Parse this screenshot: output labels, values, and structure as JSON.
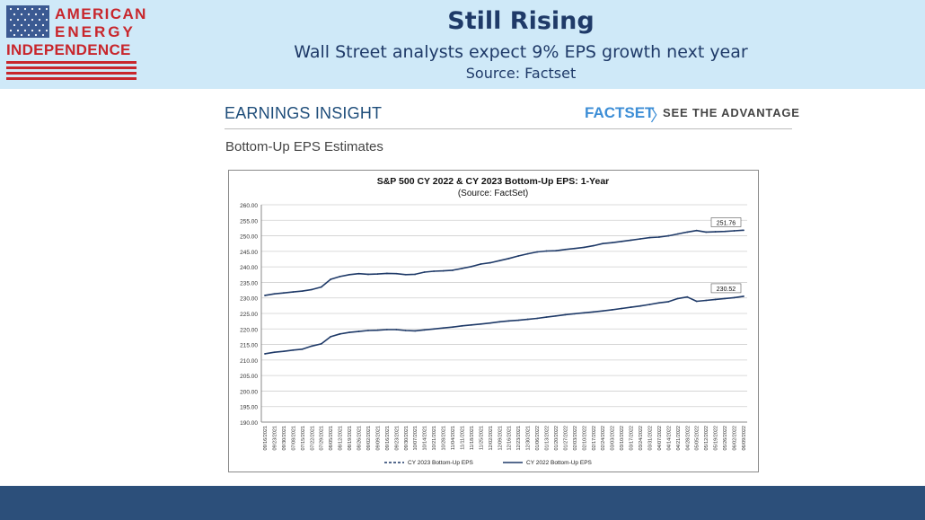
{
  "header": {
    "logo": {
      "line1": "AMERICAN",
      "line2": "ENERGY",
      "line3": "INDEPENDENCE"
    },
    "title": "Still Rising",
    "subtitle": "Wall Street analysts expect 9% EPS growth next year",
    "source": "Source: Factset"
  },
  "insight": {
    "title": "EARNINGS INSIGHT",
    "brand": "FACTSET",
    "chevron": "〉",
    "tagline": "SEE THE ADVANTAGE",
    "section_title": "Bottom-Up EPS Estimates"
  },
  "colors": {
    "header_bg": "#cfe9f8",
    "title": "#1f3a68",
    "bottom_bar": "#2c4f7a",
    "series": "#1f3a68",
    "logo_red": "#c8262c"
  },
  "chart_data": {
    "type": "line",
    "title": "S&P 500 CY 2022 & CY 2023 Bottom-Up EPS: 1-Year",
    "subtitle": "(Source: FactSet)",
    "ylim": [
      190,
      260
    ],
    "y_ticks": [
      "260.00",
      "255.00",
      "250.00",
      "245.00",
      "240.00",
      "235.00",
      "230.00",
      "225.00",
      "220.00",
      "215.00",
      "210.00",
      "205.00",
      "200.00",
      "195.00",
      "190.00"
    ],
    "x_ticks": [
      "09/16/2021",
      "09/23/2021",
      "09/30/2021",
      "07/08/2021",
      "07/15/2021",
      "07/22/2021",
      "07/29/2021",
      "08/05/2021",
      "08/12/2021",
      "08/19/2021",
      "08/26/2021",
      "09/02/2021",
      "09/09/2021",
      "09/16/2021",
      "09/23/2021",
      "09/30/2021",
      "10/07/2021",
      "10/14/2021",
      "10/21/2021",
      "10/28/2021",
      "11/04/2021",
      "11/11/2021",
      "11/18/2021",
      "11/25/2021",
      "12/02/2021",
      "12/09/2021",
      "12/16/2021",
      "12/23/2021",
      "12/30/2021",
      "01/06/2022",
      "01/13/2022",
      "01/20/2022",
      "01/27/2022",
      "02/03/2022",
      "02/10/2022",
      "02/17/2022",
      "02/24/2022",
      "03/03/2022",
      "03/10/2022",
      "03/17/2022",
      "03/24/2022",
      "03/31/2022",
      "04/07/2022",
      "04/14/2022",
      "04/21/2022",
      "04/28/2022",
      "05/05/2022",
      "05/12/2022",
      "05/19/2022",
      "05/26/2022",
      "06/02/2022",
      "06/09/2022"
    ],
    "grid": true,
    "legend": "bottom",
    "series": [
      {
        "name": "CY 2023 Bottom-Up EPS",
        "style": "dashed",
        "values": [
          230.8,
          231.3,
          231.6,
          231.9,
          232.2,
          232.7,
          233.5,
          236.0,
          236.9,
          237.5,
          237.8,
          237.6,
          237.7,
          237.9,
          237.8,
          237.5,
          237.6,
          238.3,
          238.6,
          238.7,
          238.9,
          239.5,
          240.1,
          240.9,
          241.3,
          242.0,
          242.7,
          243.5,
          244.2,
          244.8,
          245.1,
          245.2,
          245.6,
          245.9,
          246.3,
          246.8,
          247.5,
          247.8,
          248.2,
          248.6,
          249.0,
          249.4,
          249.6,
          250.0,
          250.6,
          251.2,
          251.7,
          251.2,
          251.3,
          251.4,
          251.6,
          251.8
        ]
      },
      {
        "name": "CY 2022 Bottom-Up EPS",
        "style": "solid",
        "values": [
          212.0,
          212.5,
          212.8,
          213.2,
          213.5,
          214.5,
          215.2,
          217.5,
          218.4,
          218.9,
          219.2,
          219.5,
          219.6,
          219.8,
          219.8,
          219.5,
          219.4,
          219.7,
          220.0,
          220.3,
          220.6,
          221.0,
          221.3,
          221.6,
          221.9,
          222.3,
          222.6,
          222.8,
          223.1,
          223.4,
          223.8,
          224.2,
          224.6,
          224.9,
          225.2,
          225.5,
          225.8,
          226.2,
          226.6,
          227.0,
          227.4,
          227.9,
          228.4,
          228.8,
          229.8,
          230.3,
          228.9,
          229.2,
          229.5,
          229.8,
          230.1,
          230.52
        ]
      }
    ],
    "end_labels": [
      "251.76",
      "230.52"
    ]
  }
}
